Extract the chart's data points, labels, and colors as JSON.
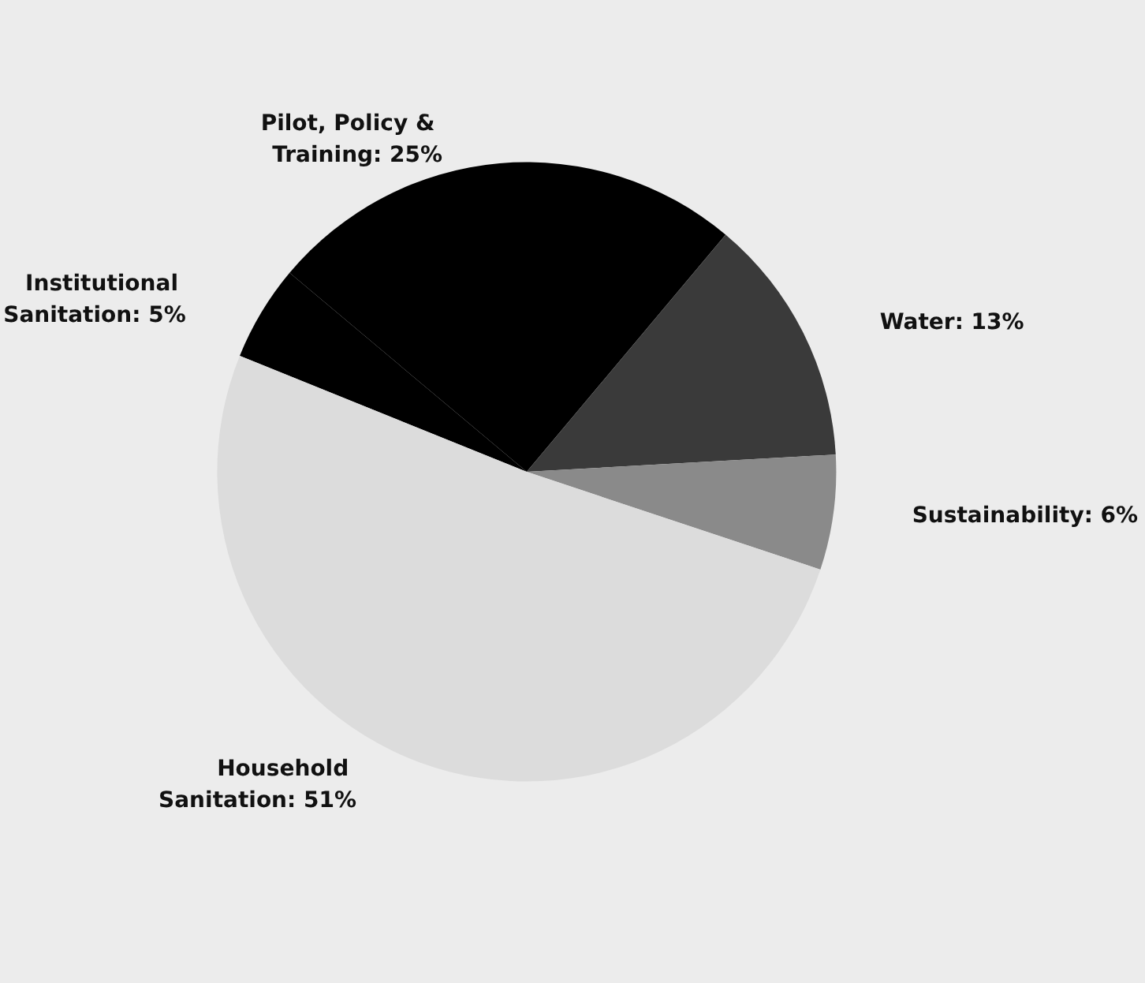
{
  "chart_data": {
    "type": "pie",
    "categories": [
      "Institutional Sanitation",
      "Pilot, Policy & Training",
      "Water",
      "Sustainability",
      "Household Sanitation"
    ],
    "values": [
      5,
      25,
      13,
      6,
      51
    ],
    "value_labels": [
      "5%",
      "25%",
      "13%",
      "6%",
      "51%"
    ],
    "colors": [
      "#000000",
      "#000000",
      "#3a3a3a",
      "#8a8a8a",
      "#dcdcdc"
    ],
    "legend": false
  }
}
